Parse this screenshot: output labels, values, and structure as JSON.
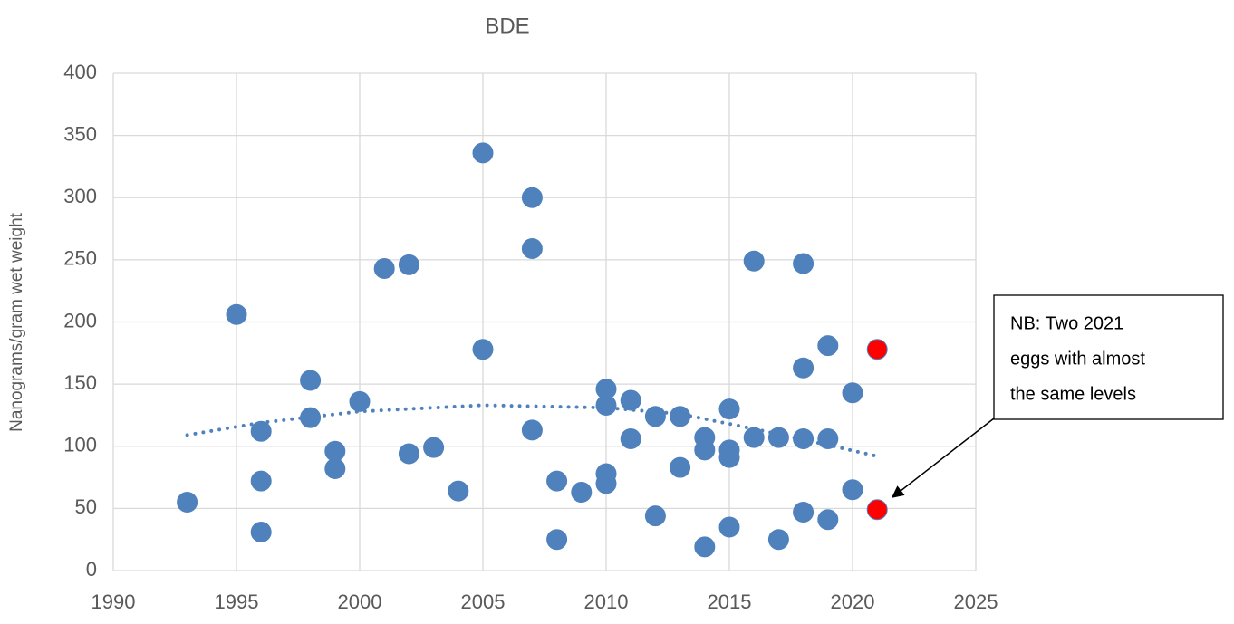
{
  "chart_data": {
    "type": "scatter",
    "title": "BDE",
    "y_label": "Nanograms/gram wet weight",
    "xlim": [
      1990,
      2025
    ],
    "xticks": [
      1990,
      1995,
      2000,
      2005,
      2010,
      2015,
      2020,
      2025
    ],
    "ylim": [
      0,
      400
    ],
    "yticks": [
      0,
      50,
      100,
      150,
      200,
      250,
      300,
      350,
      400
    ],
    "grid": true,
    "series": [
      {
        "color": "#4f81bd",
        "x": [
          1993,
          1995,
          1996,
          1996,
          1996,
          1998,
          1998,
          1999,
          1999,
          2000,
          2001,
          2002,
          2002,
          2003,
          2004,
          2005,
          2005,
          2007,
          2007,
          2007,
          2008,
          2008,
          2009,
          2010,
          2010,
          2010,
          2010,
          2011,
          2011,
          2012,
          2012,
          2013,
          2013,
          2014,
          2014,
          2014,
          2015,
          2015,
          2015,
          2015,
          2016,
          2016,
          2017,
          2017,
          2018,
          2018,
          2018,
          2018,
          2019,
          2019,
          2019,
          2020,
          2020
        ],
        "values": [
          55,
          206,
          112,
          72,
          31,
          153,
          123,
          96,
          82,
          136,
          243,
          246,
          94,
          99,
          64,
          336,
          178,
          300,
          259,
          113,
          72,
          25,
          63,
          146,
          133,
          78,
          70,
          137,
          106,
          124,
          44,
          124,
          83,
          107,
          97,
          19,
          130,
          97,
          91,
          35,
          107,
          249,
          107,
          25,
          247,
          163,
          106,
          47,
          181,
          106,
          41,
          143,
          65
        ]
      },
      {
        "color": "#ff0000",
        "x": [
          2021,
          2021
        ],
        "values": [
          178,
          49
        ]
      }
    ],
    "trendline": {
      "color": "#4f81bd",
      "x": [
        1993,
        1996,
        2000,
        2005,
        2010,
        2013,
        2016,
        2019,
        2021
      ],
      "values": [
        109,
        119,
        128,
        133,
        131,
        126,
        114,
        101,
        92
      ]
    },
    "annotation": {
      "lines": [
        "NB: Two 2021",
        "eggs with almost",
        "the same levels"
      ]
    }
  }
}
